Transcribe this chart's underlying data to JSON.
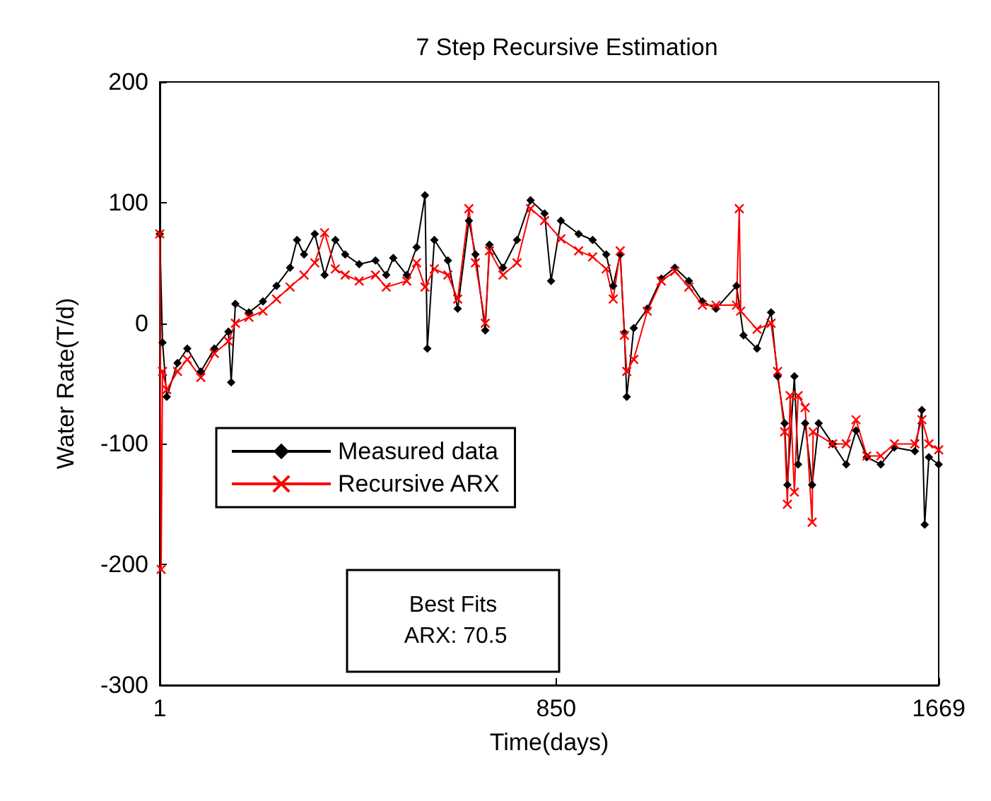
{
  "chart_data": {
    "type": "line",
    "title": "7 Step Recursive Estimation",
    "xlabel": "Time(days)",
    "ylabel": "Water Rate(T/d)",
    "xlim": [
      1,
      1669
    ],
    "xticks": [
      1,
      850,
      1669
    ],
    "ylim": [
      -300,
      200
    ],
    "yticks": [
      -300,
      -200,
      -100,
      0,
      100,
      200
    ],
    "legend": "left",
    "grid": false,
    "line_style": "solid",
    "annotations": [
      "Best Fits\n ARX: 70.5"
    ],
    "series": [
      {
        "name": "Measured data",
        "color": "#000000",
        "marker": "diamond",
        "x": [
          1,
          7,
          16,
          39,
          60,
          89,
          118,
          148,
          154,
          163,
          192,
          222,
          251,
          280,
          295,
          310,
          333,
          354,
          377,
          398,
          428,
          463,
          486,
          501,
          530,
          551,
          569,
          574,
          589,
          618,
          639,
          663,
          677,
          698,
          707,
          736,
          766,
          795,
          825,
          839,
          860,
          898,
          928,
          957,
          972,
          987,
          996,
          1001,
          1016,
          1045,
          1075,
          1104,
          1134,
          1163,
          1192,
          1236,
          1251,
          1280,
          1310,
          1324,
          1339,
          1345,
          1360,
          1368,
          1383,
          1398,
          1412,
          1442,
          1471,
          1492,
          1515,
          1545,
          1574,
          1618,
          1633,
          1639,
          1648,
          1669
        ],
        "values": [
          74,
          -16,
          -61,
          -33,
          -21,
          -40,
          -21,
          -7,
          -49,
          16,
          9,
          18,
          31,
          46,
          69,
          57,
          74,
          40,
          69,
          57,
          49,
          52,
          40,
          54,
          40,
          63,
          106,
          -21,
          69,
          52,
          12,
          85,
          57,
          -6,
          65,
          46,
          69,
          102,
          91,
          35,
          85,
          74,
          69,
          57,
          31,
          57,
          -8,
          -61,
          -4,
          12,
          37,
          46,
          35,
          18,
          12,
          31,
          -10,
          -21,
          9,
          -44,
          -83,
          -134,
          -44,
          -117,
          -83,
          -134,
          -83,
          -100,
          -117,
          -89,
          -111,
          -117,
          -103,
          -106,
          -72,
          -167,
          -111,
          -117
        ]
      },
      {
        "name": "Recursive ARX",
        "color": "#ff0000",
        "marker": "cross",
        "x": [
          1,
          4,
          7,
          16,
          39,
          60,
          89,
          118,
          148,
          163,
          192,
          222,
          251,
          280,
          310,
          333,
          354,
          377,
          398,
          428,
          463,
          486,
          530,
          551,
          569,
          589,
          618,
          639,
          663,
          677,
          698,
          707,
          736,
          766,
          795,
          825,
          860,
          898,
          928,
          957,
          972,
          987,
          996,
          1001,
          1016,
          1045,
          1075,
          1104,
          1134,
          1163,
          1192,
          1236,
          1242,
          1245,
          1280,
          1310,
          1324,
          1339,
          1345,
          1351,
          1360,
          1368,
          1383,
          1398,
          1400,
          1442,
          1471,
          1492,
          1515,
          1545,
          1574,
          1618,
          1633,
          1648,
          1669
        ],
        "values": [
          74,
          -204,
          -40,
          -55,
          -40,
          -30,
          -45,
          -25,
          -15,
          0,
          5,
          10,
          20,
          30,
          40,
          50,
          75,
          45,
          40,
          35,
          40,
          30,
          35,
          50,
          30,
          45,
          40,
          20,
          95,
          50,
          0,
          60,
          40,
          50,
          95,
          85,
          70,
          60,
          55,
          45,
          20,
          60,
          -10,
          -40,
          -30,
          10,
          35,
          43,
          30,
          15,
          15,
          15,
          95,
          10,
          -5,
          0,
          -40,
          -90,
          -150,
          -60,
          -140,
          -60,
          -70,
          -165,
          -90,
          -100,
          -100,
          -80,
          -110,
          -110,
          -100,
          -100,
          -80,
          -100,
          -105
        ]
      }
    ]
  }
}
